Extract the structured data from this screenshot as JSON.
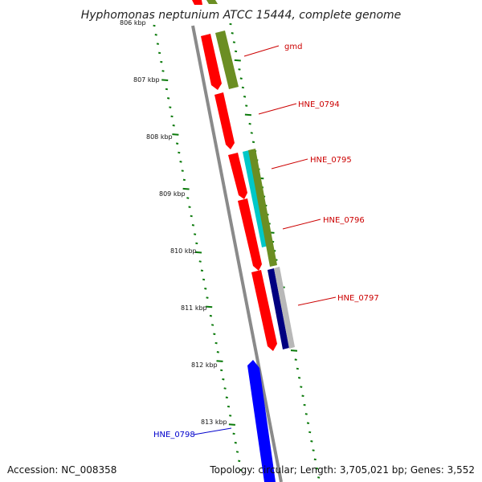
{
  "title": "Hyphomonas neptunium ATCC 15444, complete genome",
  "kbp_markers": [
    {
      "label": "806 kbp",
      "partial": true
    },
    {
      "label": "807 kbp"
    },
    {
      "label": "808 kbp"
    },
    {
      "label": "809 kbp"
    },
    {
      "label": "810 kbp"
    },
    {
      "label": "811 kbp"
    },
    {
      "label": "812 kbp"
    },
    {
      "label": "813 kbp"
    }
  ],
  "gene_labels": [
    {
      "name": "gmd",
      "color": "#cc0000"
    },
    {
      "name": "HNE_0794",
      "color": "#cc0000"
    },
    {
      "name": "HNE_0795",
      "color": "#cc0000"
    },
    {
      "name": "HNE_0796",
      "color": "#cc0000"
    },
    {
      "name": "HNE_0797",
      "color": "#cc0000"
    },
    {
      "name": "HNE_0798",
      "color": "#0000cc"
    }
  ],
  "colors": {
    "backbone": "#8a8a8a",
    "tick": "#0a7a0a",
    "gene_red": "#ff0000",
    "gene_olive": "#6b8e23",
    "gene_cyan": "#00c8c8",
    "gene_navy": "#000080",
    "gene_gray": "#b8b8b8",
    "gene_blue": "#0000ff"
  },
  "footer": {
    "accession": "Accession: NC_008358",
    "topology": "Topology: circular; Length: 3,705,021 bp; Genes: 3,552"
  }
}
